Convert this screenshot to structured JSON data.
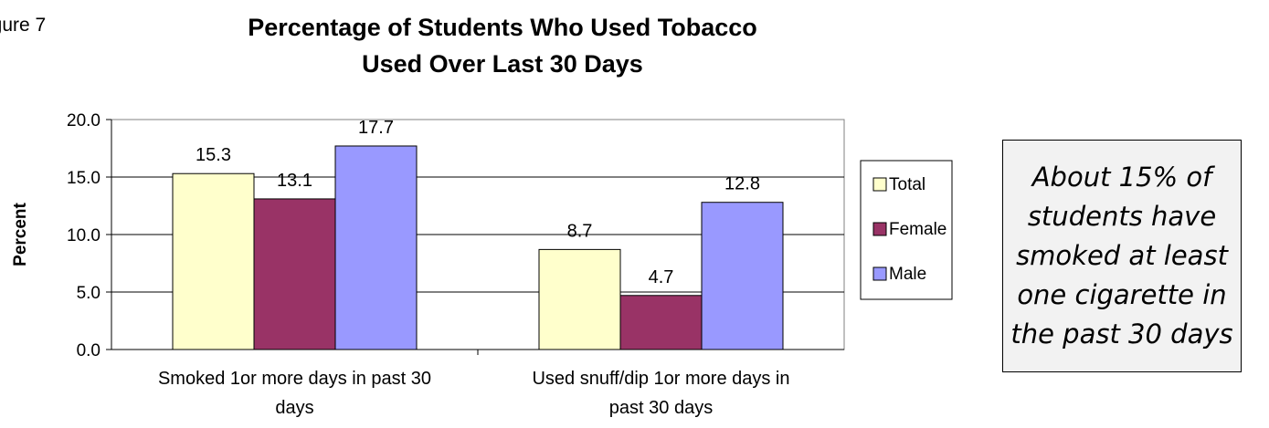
{
  "figure_label": "igure 7",
  "callout_text": "About 15% of students have smoked at least one cigarette in the past 30 days",
  "chart_data": {
    "type": "bar",
    "title_lines": [
      "Percentage of Students Who Used Tobacco",
      "Used Over Last 30 Days"
    ],
    "xlabel": "",
    "ylabel": "Percent",
    "ylim": [
      0,
      20
    ],
    "yticks": [
      "0.0",
      "5.0",
      "10.0",
      "15.0",
      "20.0"
    ],
    "grid": true,
    "legend_position": "right",
    "categories": [
      [
        "Smoked 1or more days in past 30",
        "days"
      ],
      [
        "Used snuff/dip 1or more days in",
        "past 30 days"
      ]
    ],
    "series": [
      {
        "name": "Total",
        "color": "#ffffcc",
        "values": [
          15.3,
          8.7
        ]
      },
      {
        "name": "Female",
        "color": "#993366",
        "values": [
          13.1,
          4.7
        ]
      },
      {
        "name": "Male",
        "color": "#9999ff",
        "values": [
          17.7,
          12.8
        ]
      }
    ],
    "data_labels": [
      [
        "15.3",
        "8.7"
      ],
      [
        "13.1",
        "4.7"
      ],
      [
        "17.7",
        "12.8"
      ]
    ]
  }
}
